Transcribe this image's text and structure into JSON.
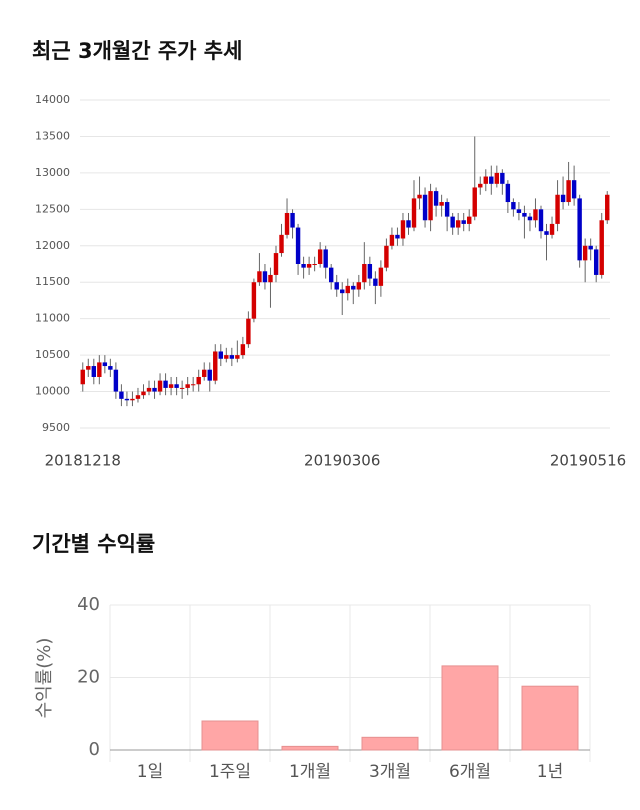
{
  "chart_data": [
    {
      "type": "candlestick",
      "title": "최근 3개월간 주가 추세",
      "categories": [
        "20181218",
        null,
        null,
        null,
        null,
        null,
        null,
        null,
        null,
        null,
        null,
        null,
        null,
        null,
        null,
        null,
        null,
        null,
        null,
        null,
        null,
        null,
        null,
        null,
        null,
        null,
        null,
        null,
        null,
        null,
        null,
        null,
        null,
        null,
        null,
        null,
        null,
        null,
        null,
        null,
        null,
        null,
        null,
        null,
        null,
        null,
        null,
        "20190306",
        null,
        null,
        null,
        null,
        null,
        null,
        null,
        null,
        null,
        null,
        null,
        null,
        null,
        null,
        null,
        null,
        null,
        null,
        null,
        null,
        null,
        null,
        null,
        null,
        null,
        null,
        null,
        null,
        null,
        null,
        null,
        null,
        null,
        null,
        null,
        null,
        null,
        null,
        null,
        null,
        null,
        null,
        null,
        null,
        "20190516",
        null,
        null,
        null
      ],
      "open": [
        10100,
        10300,
        10350,
        10200,
        10400,
        10350,
        10300,
        10000,
        9900,
        9880,
        9900,
        9950,
        10000,
        10050,
        10000,
        10150,
        10050,
        10100,
        10050,
        10050,
        10100,
        10100,
        10200,
        10300,
        10150,
        10550,
        10450,
        10500,
        10450,
        10500,
        10650,
        11000,
        11500,
        11650,
        11500,
        11600,
        11900,
        12150,
        12450,
        12250,
        11750,
        11700,
        11750,
        11750,
        11950,
        11700,
        11500,
        11400,
        11350,
        11450,
        11400,
        11500,
        11750,
        11550,
        11450,
        11700,
        12000,
        12150,
        12100,
        12350,
        12250,
        12650,
        12700,
        12350,
        12750,
        12550,
        12600,
        12400,
        12250,
        12350,
        12300,
        12400,
        12800,
        12850,
        12950,
        12850,
        13000,
        12850,
        12600,
        12500,
        12450,
        12400,
        12350,
        12500,
        12200,
        12150,
        12300,
        12700,
        12600,
        12900,
        12650,
        11800,
        12000,
        11950,
        11600,
        12350
      ],
      "high": [
        10400,
        10450,
        10450,
        10500,
        10500,
        10450,
        10400,
        10100,
        10000,
        10000,
        10050,
        10100,
        10150,
        10150,
        10250,
        10250,
        10200,
        10200,
        10150,
        10200,
        10200,
        10300,
        10400,
        10400,
        10650,
        10650,
        10600,
        10600,
        10700,
        10750,
        11100,
        11550,
        11900,
        11750,
        11700,
        12000,
        12300,
        12650,
        12500,
        12300,
        11850,
        11850,
        11850,
        12050,
        12000,
        11750,
        11600,
        11500,
        11550,
        11500,
        11600,
        12050,
        11850,
        11650,
        11800,
        12100,
        12250,
        12250,
        12450,
        12450,
        12900,
        12950,
        12800,
        12850,
        12800,
        12700,
        12650,
        12450,
        12450,
        12450,
        12500,
        13500,
        12950,
        13050,
        13100,
        13100,
        13050,
        12900,
        12650,
        12600,
        12550,
        12450,
        12650,
        12550,
        12300,
        12400,
        12900,
        12950,
        13150,
        13100,
        12700,
        12100,
        12100,
        12000,
        12450,
        12750
      ],
      "low": [
        10000,
        10200,
        10100,
        10100,
        10250,
        10200,
        9900,
        9800,
        9800,
        9800,
        9850,
        9900,
        9950,
        9900,
        9950,
        9950,
        9950,
        9950,
        9900,
        9950,
        10000,
        10000,
        10150,
        10000,
        10100,
        10350,
        10400,
        10350,
        10400,
        10450,
        10600,
        10950,
        11450,
        11400,
        11150,
        11500,
        11850,
        12100,
        12100,
        11600,
        11550,
        11600,
        11650,
        11700,
        11550,
        11400,
        11300,
        11050,
        11250,
        11200,
        11300,
        11400,
        11450,
        11200,
        11300,
        11650,
        11950,
        12000,
        12000,
        12150,
        12200,
        12500,
        12250,
        12200,
        12400,
        12400,
        12200,
        12150,
        12150,
        12200,
        12200,
        12350,
        12700,
        12750,
        12700,
        12800,
        12700,
        12450,
        12400,
        12350,
        12100,
        12200,
        12250,
        12100,
        11800,
        12100,
        12200,
        12500,
        12550,
        12550,
        11700,
        11500,
        11800,
        11500,
        11550,
        12300
      ],
      "close": [
        10300,
        10350,
        10200,
        10400,
        10350,
        10300,
        10000,
        9900,
        9880,
        9900,
        9950,
        10000,
        10050,
        10000,
        10150,
        10050,
        10100,
        10050,
        10050,
        10100,
        10100,
        10200,
        10300,
        10150,
        10550,
        10450,
        10500,
        10450,
        10500,
        10650,
        11000,
        11500,
        11650,
        11500,
        11600,
        11900,
        12150,
        12450,
        12250,
        11750,
        11700,
        11750,
        11750,
        11950,
        11700,
        11500,
        11400,
        11350,
        11450,
        11400,
        11500,
        11750,
        11550,
        11450,
        11700,
        12000,
        12150,
        12100,
        12350,
        12250,
        12650,
        12700,
        12350,
        12750,
        12550,
        12600,
        12400,
        12250,
        12350,
        12300,
        12400,
        12800,
        12850,
        12950,
        12850,
        13000,
        12850,
        12600,
        12500,
        12450,
        12400,
        12350,
        12500,
        12200,
        12150,
        12300,
        12700,
        12600,
        12900,
        12650,
        11800,
        12000,
        11950,
        11600,
        12350,
        12700
      ],
      "up_color": "#d40000",
      "down_color": "#0000c8",
      "ylim": [
        9500,
        14000
      ],
      "yticks": [
        9500,
        10000,
        10500,
        11000,
        11500,
        12000,
        12500,
        13000,
        13500,
        14000
      ],
      "grid": true
    },
    {
      "type": "bar",
      "title": "기간별 수익률",
      "ylabel": "수익률(%)",
      "categories": [
        "1일",
        "1주일",
        "1개월",
        "3개월",
        "6개월",
        "1년"
      ],
      "values": [
        0,
        8,
        1,
        3.5,
        23.2,
        17.6
      ],
      "color": "#ffa6a6",
      "ylim": [
        0,
        40
      ],
      "yticks": [
        0,
        20,
        40
      ],
      "grid": true
    }
  ]
}
